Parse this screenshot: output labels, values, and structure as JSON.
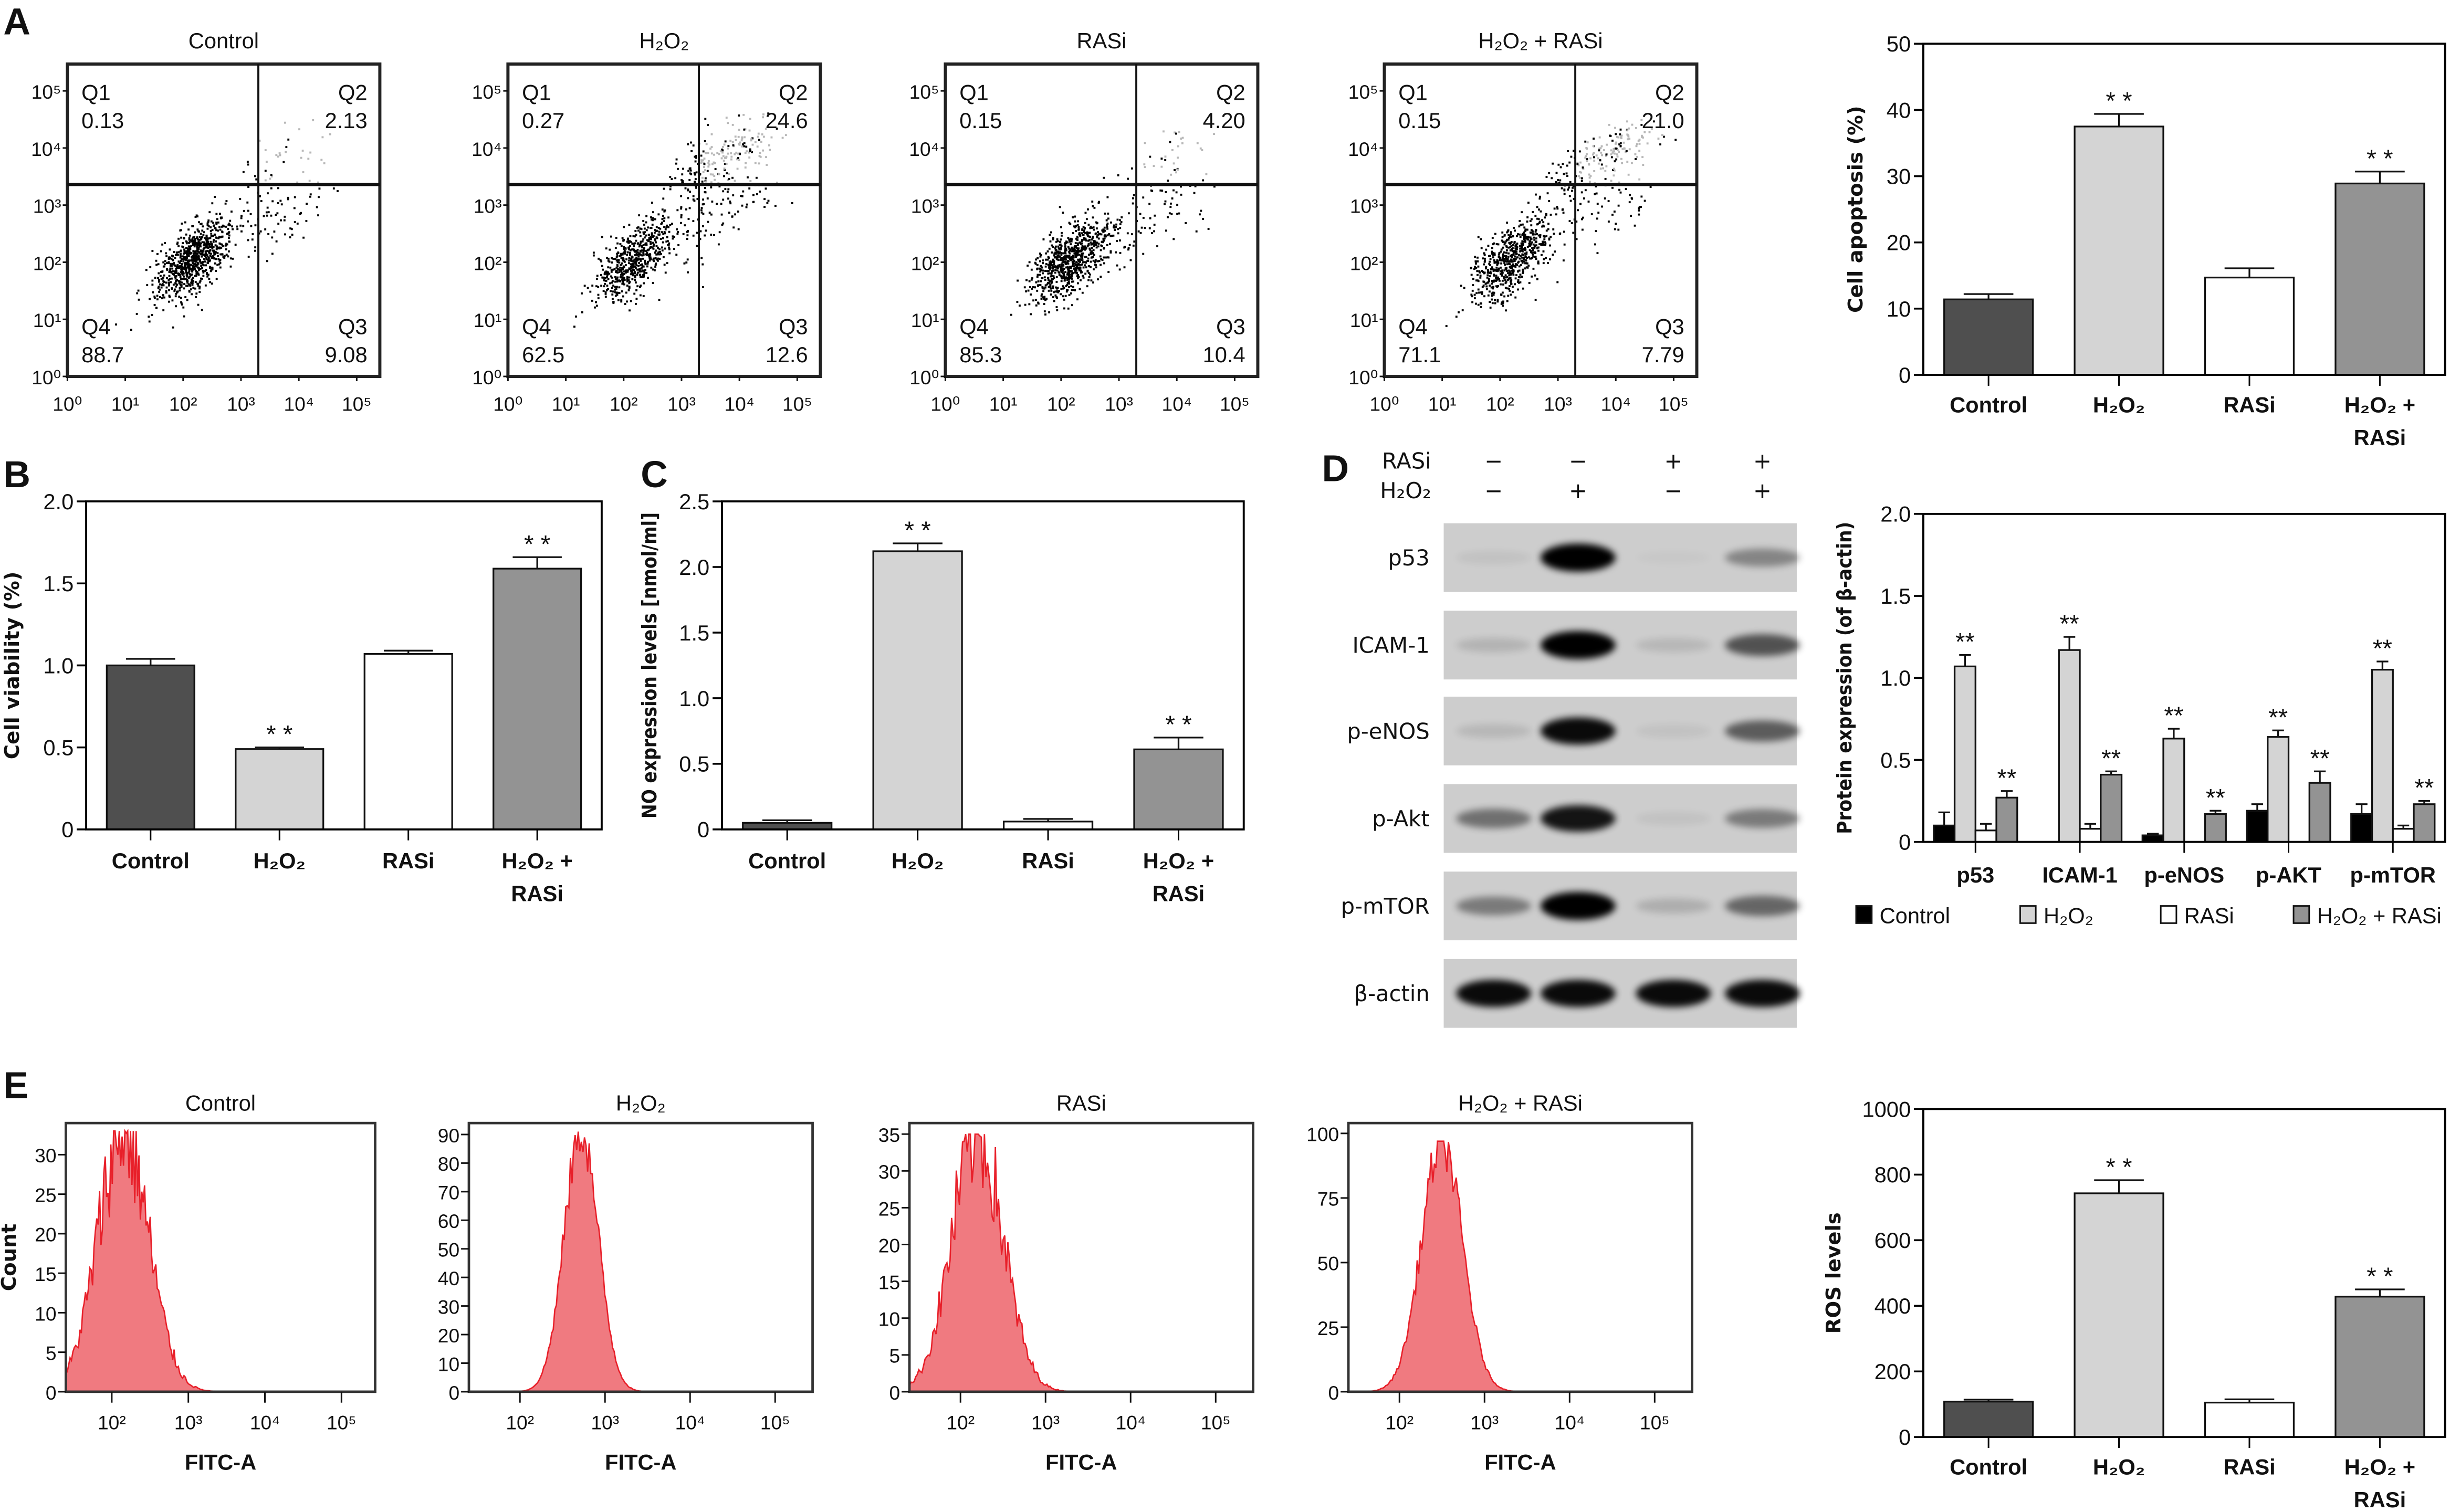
{
  "panel_labels": [
    "A",
    "B",
    "C",
    "D",
    "E"
  ],
  "chart_data": [
    {
      "type": "scatter",
      "id": "flow-apoptosis-control",
      "title": "Control",
      "x_tick_labels": [
        "10⁰",
        "10¹",
        "10²",
        "10³",
        "10⁴",
        "10⁵"
      ],
      "y_tick_labels": [
        "10⁰",
        "10¹",
        "10²",
        "10³",
        "10⁴",
        "10⁵"
      ],
      "xlim_log10": [
        0,
        5.4
      ],
      "ylim_log10": [
        0,
        5.47
      ],
      "gate_log10": {
        "x": 3.3,
        "y": 3.36
      },
      "quadrant_names": [
        "Q1",
        "Q2",
        "Q3",
        "Q4"
      ],
      "quadrant_values": [
        "0.13",
        "2.13",
        "9.08",
        "88.7"
      ]
    },
    {
      "type": "scatter",
      "id": "flow-apoptosis-h2o2",
      "title": "H₂O₂",
      "x_tick_labels": [
        "10⁰",
        "10¹",
        "10²",
        "10³",
        "10⁴",
        "10⁵"
      ],
      "y_tick_labels": [
        "10⁰",
        "10¹",
        "10²",
        "10³",
        "10⁴",
        "10⁵"
      ],
      "xlim_log10": [
        0,
        5.4
      ],
      "ylim_log10": [
        0,
        5.47
      ],
      "gate_log10": {
        "x": 3.3,
        "y": 3.36
      },
      "quadrant_names": [
        "Q1",
        "Q2",
        "Q3",
        "Q4"
      ],
      "quadrant_values": [
        "0.27",
        "24.6",
        "12.6",
        "62.5"
      ]
    },
    {
      "type": "scatter",
      "id": "flow-apoptosis-rasi",
      "title": "RASi",
      "x_tick_labels": [
        "10⁰",
        "10¹",
        "10²",
        "10³",
        "10⁴",
        "10⁵"
      ],
      "y_tick_labels": [
        "10⁰",
        "10¹",
        "10²",
        "10³",
        "10⁴",
        "10⁵"
      ],
      "xlim_log10": [
        0,
        5.4
      ],
      "ylim_log10": [
        0,
        5.47
      ],
      "gate_log10": {
        "x": 3.3,
        "y": 3.36
      },
      "quadrant_names": [
        "Q1",
        "Q2",
        "Q3",
        "Q4"
      ],
      "quadrant_values": [
        "0.15",
        "4.20",
        "10.4",
        "85.3"
      ]
    },
    {
      "type": "scatter",
      "id": "flow-apoptosis-h2o2-rasi",
      "title": "H₂O₂ + RASi",
      "x_tick_labels": [
        "10⁰",
        "10¹",
        "10²",
        "10³",
        "10⁴",
        "10⁵"
      ],
      "y_tick_labels": [
        "10⁰",
        "10¹",
        "10²",
        "10³",
        "10⁴",
        "10⁵"
      ],
      "xlim_log10": [
        0,
        5.4
      ],
      "ylim_log10": [
        0,
        5.47
      ],
      "gate_log10": {
        "x": 3.3,
        "y": 3.36
      },
      "quadrant_names": [
        "Q1",
        "Q2",
        "Q3",
        "Q4"
      ],
      "quadrant_values": [
        "0.15",
        "21.0",
        "7.79",
        "71.1"
      ]
    },
    {
      "type": "bar",
      "id": "cell-apoptosis-chart",
      "title": "",
      "ylabel": "Cell apoptosis (%)",
      "xlabel": "",
      "categories": [
        "Control",
        "H₂O₂",
        "RASi",
        "H₂O₂ + RASi"
      ],
      "category_lines": [
        [
          "Control"
        ],
        [
          "H₂O₂"
        ],
        [
          "RASi"
        ],
        [
          "H₂O₂ +",
          "RASi"
        ]
      ],
      "values": [
        11.4,
        37.5,
        14.7,
        28.9
      ],
      "errors": [
        0.8,
        1.9,
        1.4,
        1.8
      ],
      "significance": [
        "",
        "* *",
        "",
        "* *"
      ],
      "ylim": [
        0,
        50
      ],
      "ytick_labels": [
        "0",
        "10",
        "20",
        "30",
        "40",
        "50"
      ],
      "colors": [
        "#4f4f4f",
        "#d4d4d4",
        "#ffffff",
        "#939393"
      ]
    },
    {
      "type": "bar",
      "id": "cell-viability-chart",
      "title": "",
      "ylabel": "Cell viability (%)",
      "xlabel": "",
      "categories": [
        "Control",
        "H₂O₂",
        "RASi",
        "H₂O₂ + RASi"
      ],
      "category_lines": [
        [
          "Control"
        ],
        [
          "H₂O₂"
        ],
        [
          "RASi"
        ],
        [
          "H₂O₂ +",
          "RASi"
        ]
      ],
      "values": [
        1.0,
        0.49,
        1.07,
        1.59
      ],
      "errors": [
        0.04,
        0.01,
        0.02,
        0.07
      ],
      "significance": [
        "",
        "* *",
        "",
        "* *"
      ],
      "ylim": [
        0,
        2.0
      ],
      "ytick_labels": [
        "0",
        "0.5",
        "1.0",
        "1.5",
        "2.0"
      ],
      "colors": [
        "#4f4f4f",
        "#d4d4d4",
        "#ffffff",
        "#939393"
      ]
    },
    {
      "type": "bar",
      "id": "no-expression-chart",
      "title": "",
      "ylabel": "NO expression levels [nmol/ml]",
      "xlabel": "",
      "categories": [
        "Control",
        "H₂O₂",
        "RASi",
        "H₂O₂ + RASi"
      ],
      "category_lines": [
        [
          "Control"
        ],
        [
          "H₂O₂"
        ],
        [
          "RASi"
        ],
        [
          "H₂O₂ +",
          "RASi"
        ]
      ],
      "values": [
        0.05,
        2.12,
        0.06,
        0.61
      ],
      "errors": [
        0.02,
        0.06,
        0.02,
        0.09
      ],
      "significance": [
        "",
        "* *",
        "",
        "* *"
      ],
      "ylim": [
        0,
        2.5
      ],
      "ytick_labels": [
        "0",
        "0.5",
        "1.0",
        "1.5",
        "2.0",
        "2.5"
      ],
      "colors": [
        "#4f4f4f",
        "#d4d4d4",
        "#ffffff",
        "#939393"
      ]
    },
    {
      "type": "bar",
      "id": "protein-expression-chart",
      "title": "",
      "ylabel": "Protein expression (of β-actin)",
      "xlabel": "",
      "categories": [
        "p53",
        "ICAM-1",
        "p-eNOS",
        "p-AKT",
        "p-mTOR"
      ],
      "ylim": [
        0,
        2.0
      ],
      "ytick_labels": [
        "0",
        "0.5",
        "1.0",
        "1.5",
        "2.0"
      ],
      "legend_position": "bottom",
      "series": [
        {
          "name": "Control",
          "color": "#000000",
          "values": [
            0.1,
            0.0,
            0.04,
            0.19,
            0.17
          ],
          "errors": [
            0.08,
            0,
            0.01,
            0.04,
            0.06
          ],
          "significance": [
            "",
            "",
            "",
            "",
            ""
          ]
        },
        {
          "name": "H₂O₂",
          "color": "#d4d4d4",
          "values": [
            1.07,
            1.17,
            0.63,
            0.64,
            1.05
          ],
          "errors": [
            0.07,
            0.08,
            0.06,
            0.04,
            0.05
          ],
          "significance": [
            "**",
            "**",
            "**",
            "**",
            "**"
          ]
        },
        {
          "name": "RASi",
          "color": "#ffffff",
          "values": [
            0.07,
            0.08,
            0.0,
            0.0,
            0.08
          ],
          "errors": [
            0.04,
            0.03,
            0,
            0,
            0.02
          ],
          "significance": [
            "",
            "",
            "",
            "",
            ""
          ]
        },
        {
          "name": "H₂O₂ + RASi",
          "color": "#939393",
          "values": [
            0.27,
            0.41,
            0.17,
            0.36,
            0.23
          ],
          "errors": [
            0.04,
            0.02,
            0.02,
            0.07,
            0.02
          ],
          "significance": [
            "**",
            "**",
            "**",
            "**",
            "**"
          ]
        }
      ]
    },
    {
      "type": "histogram",
      "id": "ros-hist-control",
      "title": "Control",
      "xlabel": "FITC-A",
      "ylabel": "Count",
      "xlim_log10": [
        1.4,
        5.44
      ],
      "ylim": [
        0,
        34
      ],
      "xtick_values_log10": [
        2,
        3,
        4,
        5
      ],
      "xtick_labels": [
        "10²",
        "10³",
        "10⁴",
        "10⁵"
      ],
      "ytick_labels": [
        "0",
        "5",
        "10",
        "15",
        "20",
        "25",
        "30"
      ],
      "peak_log10": 2.15,
      "peak_count": 33,
      "spread_log10": 0.33
    },
    {
      "type": "histogram",
      "id": "ros-hist-h2o2",
      "title": "H₂O₂",
      "xlabel": "FITC-A",
      "ylabel": "",
      "xlim_log10": [
        1.4,
        5.44
      ],
      "ylim": [
        0,
        94
      ],
      "xtick_values_log10": [
        2,
        3,
        4,
        5
      ],
      "xtick_labels": [
        "10²",
        "10³",
        "10⁴",
        "10⁵"
      ],
      "ytick_labels": [
        "0",
        "10",
        "20",
        "30",
        "40",
        "50",
        "60",
        "70",
        "80",
        "90"
      ],
      "peak_log10": 2.72,
      "peak_count": 91,
      "spread_log10": 0.2
    },
    {
      "type": "histogram",
      "id": "ros-hist-rasi",
      "title": "RASi",
      "xlabel": "FITC-A",
      "ylabel": "",
      "xlim_log10": [
        1.4,
        5.44
      ],
      "ylim": [
        0,
        36.5
      ],
      "xtick_values_log10": [
        2,
        3,
        4,
        5
      ],
      "xtick_labels": [
        "10²",
        "10³",
        "10⁴",
        "10⁵"
      ],
      "ytick_labels": [
        "0",
        "5",
        "10",
        "15",
        "20",
        "25",
        "30",
        "35"
      ],
      "peak_log10": 2.2,
      "peak_count": 35,
      "spread_log10": 0.3
    },
    {
      "type": "histogram",
      "id": "ros-hist-h2o2-rasi",
      "title": "H₂O₂ + RASi",
      "xlabel": "FITC-A",
      "ylabel": "",
      "xlim_log10": [
        1.4,
        5.44
      ],
      "ylim": [
        0,
        104
      ],
      "xtick_values_log10": [
        2,
        3,
        4,
        5
      ],
      "xtick_labels": [
        "10²",
        "10³",
        "10⁴",
        "10⁵"
      ],
      "ytick_labels": [
        "0",
        "25",
        "50",
        "75",
        "100"
      ],
      "peak_log10": 2.5,
      "peak_count": 97,
      "spread_log10": 0.24
    },
    {
      "type": "bar",
      "id": "ros-levels-chart",
      "title": "",
      "ylabel": "ROS levels",
      "xlabel": "",
      "categories": [
        "Control",
        "H₂O₂",
        "RASi",
        "H₂O₂ + RASi"
      ],
      "category_lines": [
        [
          "Control"
        ],
        [
          "H₂O₂"
        ],
        [
          "RASi"
        ],
        [
          "H₂O₂ +",
          "RASi"
        ]
      ],
      "values": [
        108,
        743,
        105,
        428
      ],
      "errors": [
        6,
        40,
        10,
        22
      ],
      "significance": [
        "",
        "* *",
        "",
        "* *"
      ],
      "ylim": [
        0,
        1000
      ],
      "ytick_labels": [
        "0",
        "200",
        "400",
        "600",
        "800",
        "1000"
      ],
      "colors": [
        "#4f4f4f",
        "#d4d4d4",
        "#ffffff",
        "#939393"
      ]
    }
  ],
  "western_blot": {
    "treatments": [
      {
        "label": "RASi",
        "signs": [
          "−",
          "−",
          "+",
          "+"
        ]
      },
      {
        "label": "H₂O₂",
        "signs": [
          "−",
          "+",
          "−",
          "+"
        ]
      }
    ],
    "rows": [
      {
        "label": "p53",
        "intensity": [
          0.05,
          1.0,
          0.02,
          0.35
        ]
      },
      {
        "label": "ICAM-1",
        "intensity": [
          0.12,
          1.0,
          0.1,
          0.6
        ]
      },
      {
        "label": "p-eNOS",
        "intensity": [
          0.1,
          0.95,
          0.05,
          0.55
        ]
      },
      {
        "label": "p-Akt",
        "intensity": [
          0.45,
          0.9,
          0.05,
          0.4
        ]
      },
      {
        "label": "p-mTOR",
        "intensity": [
          0.4,
          1.0,
          0.15,
          0.5
        ]
      },
      {
        "label": "β-actin",
        "intensity": [
          0.95,
          0.95,
          0.95,
          0.95
        ]
      }
    ]
  }
}
